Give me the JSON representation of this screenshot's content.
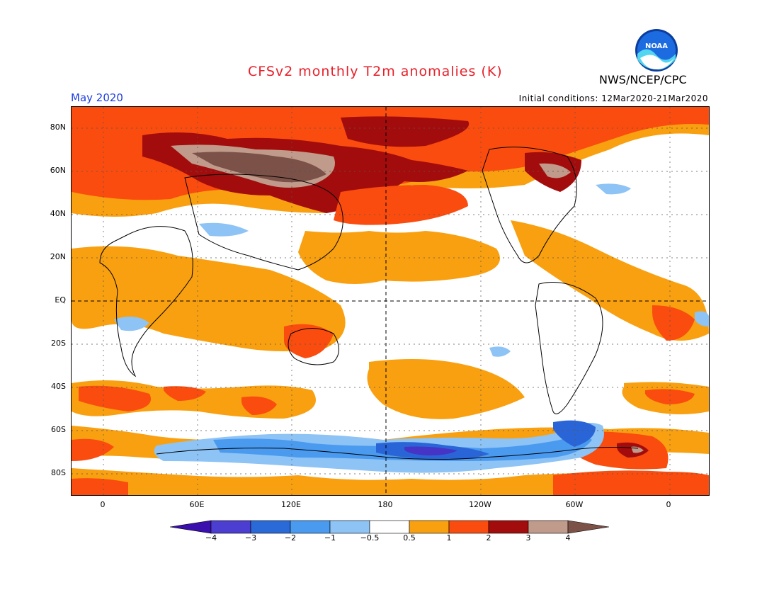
{
  "header": {
    "title": "CFSv2 monthly T2m anomalies (K)",
    "agency": "NWS/NCEP/CPC",
    "month": "May 2020",
    "initial_conditions": "Initial conditions: 12Mar2020-21Mar2020",
    "logo_text": "NOAA"
  },
  "map": {
    "lat_labels": [
      "80N",
      "60N",
      "40N",
      "20N",
      "EQ",
      "20S",
      "40S",
      "60S",
      "80S"
    ],
    "lon_labels": [
      "0",
      "60E",
      "120E",
      "180",
      "120W",
      "60W",
      "0"
    ],
    "colors": {
      "ocean_bg": "#ffffff",
      "warm_05_1": "#f9a010",
      "warm_1_2": "#fa4c0e",
      "warm_2_3": "#a30c0c",
      "warm_3_4": "#c09a8a",
      "warm_gt4": "#7b5148",
      "cool_05": "#8dc3f5",
      "cool_1": "#4a9aef",
      "cool_2": "#2a65d8",
      "cool_3": "#4534c6"
    }
  },
  "colorbar": {
    "labels": [
      "-4",
      "-3",
      "-2",
      "-1",
      "-0.5",
      "0.5",
      "1",
      "2",
      "3",
      "4"
    ],
    "colors": [
      "#3b0fae",
      "#4b3ed0",
      "#2a6ad8",
      "#4a9aef",
      "#8dc3f5",
      "#ffffff",
      "#f9a010",
      "#fa4c0e",
      "#a30c0c",
      "#c09a8a",
      "#7b5148"
    ]
  }
}
